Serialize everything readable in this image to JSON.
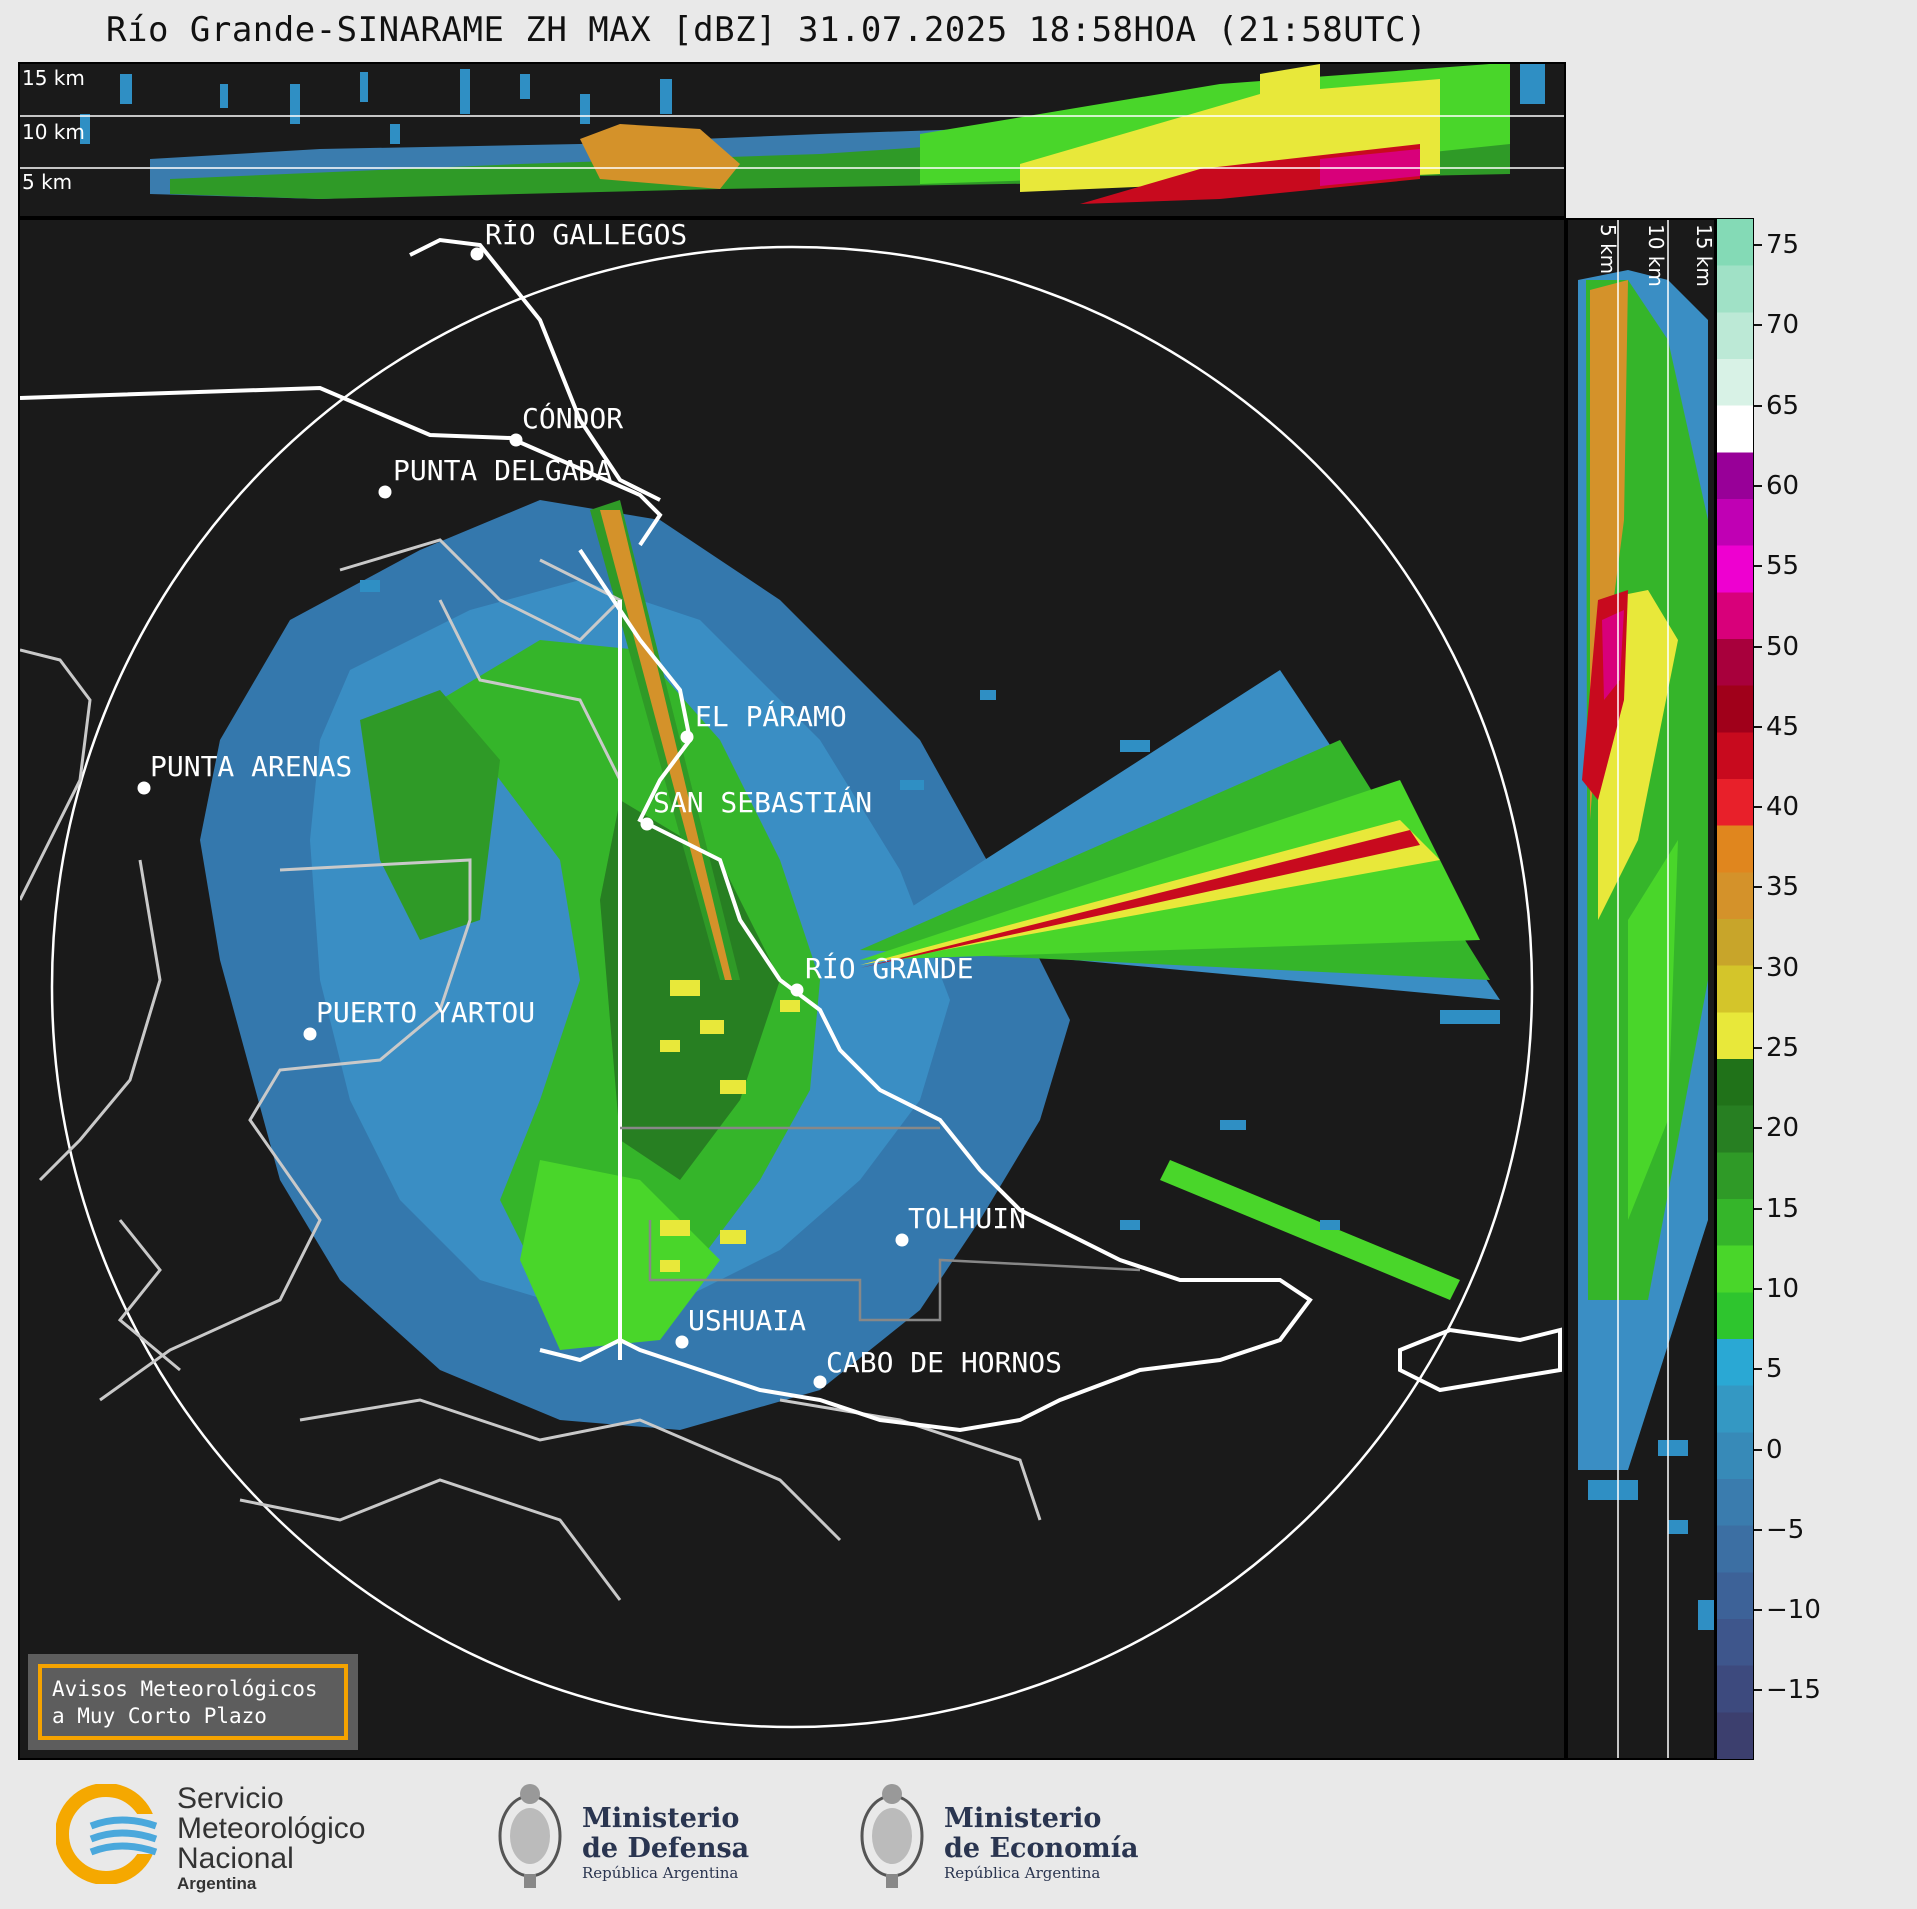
{
  "title": "Río Grande-SINARAME ZH MAX [dBZ] 31.07.2025 18:58HOA (21:58UTC)",
  "top_panel": {
    "altitude_labels": [
      "15 km",
      "10 km",
      "5 km"
    ]
  },
  "side_panel": {
    "altitude_labels": [
      "5 km",
      "10 km",
      "15 km"
    ]
  },
  "colorbar": {
    "ticks": [
      "75",
      "70",
      "65",
      "60",
      "55",
      "50",
      "45",
      "40",
      "35",
      "30",
      "25",
      "20",
      "15",
      "10",
      "5",
      "0",
      "−5",
      "−10",
      "−15"
    ],
    "colors": [
      "#3c3f6e",
      "#3d4a7e",
      "#3e568c",
      "#3d6298",
      "#3c6fa3",
      "#3a7cae",
      "#378ab8",
      "#3498c3",
      "#2aa8d4",
      "#2ec52e",
      "#49d62a",
      "#35b52a",
      "#2f9a27",
      "#277f22",
      "#207219",
      "#e8e83a",
      "#d4c52a",
      "#c8a52a",
      "#d4922a",
      "#e0861e",
      "#e8202a",
      "#c80a1e",
      "#a0001a",
      "#a8003c",
      "#d8007a",
      "#ee00d0",
      "#c000b4",
      "#980098",
      "#ffffff",
      "#d8f2e6",
      "#bce9d6",
      "#a0e1c6",
      "#84dab6"
    ]
  },
  "cities": [
    {
      "name": "RÍO GALLEGOS"
    },
    {
      "name": "CÓNDOR"
    },
    {
      "name": "PUNTA DELGADA"
    },
    {
      "name": "EL PÁRAMO"
    },
    {
      "name": "PUNTA ARENAS"
    },
    {
      "name": "SAN SEBASTIÁN"
    },
    {
      "name": "RÍO GRANDE"
    },
    {
      "name": "PUERTO YARTOU"
    },
    {
      "name": "TOLHUIN"
    },
    {
      "name": "USHUAIA"
    },
    {
      "name": "CABO DE HORNOS"
    }
  ],
  "avisos": {
    "line1": "Avisos Meteorológicos",
    "line2": "a Muy Corto Plazo"
  },
  "footer": {
    "smn": {
      "line1": "Servicio",
      "line2": "Meteorológico",
      "line3": "Nacional",
      "sub": "Argentina"
    },
    "defensa": {
      "line1": "Ministerio",
      "line2": "de Defensa",
      "sub": "República Argentina"
    },
    "economia": {
      "line1": "Ministerio",
      "line2": "de Economía",
      "sub": "República Argentina"
    }
  }
}
